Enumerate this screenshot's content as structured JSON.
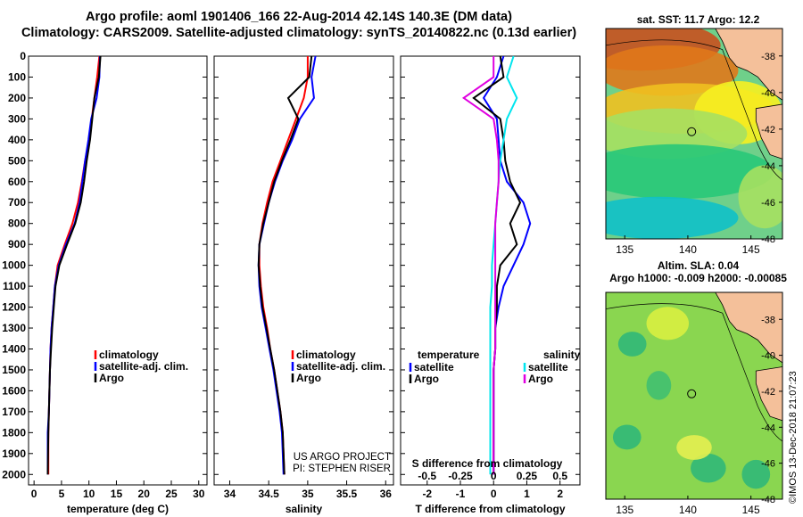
{
  "header": {
    "title_line1": "Argo profile: aoml 1901406_166 22-Aug-2014 42.14S 140.3E (DM data)",
    "title_line2": "Climatology: CARS2009. Satellite-adjusted climatology: synTS_20140822.nc (0.13d earlier)"
  },
  "panels": {
    "temperature": {
      "xlabel": "temperature (deg C)",
      "xticks": [
        "0",
        "5",
        "10",
        "15",
        "20",
        "25",
        "30"
      ],
      "legend": [
        "climatology",
        "satellite-adj. clim.",
        "Argo"
      ]
    },
    "salinity": {
      "xlabel": "salinity",
      "xticks": [
        "34",
        "34.5",
        "35",
        "35.5",
        "36"
      ],
      "legend": [
        "climatology",
        "satellite-adj. clim.",
        "Argo"
      ],
      "credit1": "US ARGO PROJECT",
      "credit2": "PI: STEPHEN RISER"
    },
    "difference": {
      "xlabel": "T difference from climatology",
      "xticks": [
        "-2",
        "-1",
        "0",
        "1",
        "2"
      ],
      "top_label": "S difference from climatology",
      "top_ticks": [
        "-0.5",
        "-0.25",
        "0",
        "0.25",
        "0.5"
      ],
      "legend_t_title": "temperature",
      "legend_t": [
        "satellite",
        "Argo"
      ],
      "legend_s_title": "salinity",
      "legend_s": [
        "satellite",
        "Argo"
      ]
    },
    "depth_ticks": [
      "0",
      "100",
      "200",
      "300",
      "400",
      "500",
      "600",
      "700",
      "800",
      "900",
      "1000",
      "1100",
      "1200",
      "1300",
      "1400",
      "1500",
      "1600",
      "1700",
      "1800",
      "1900",
      "2000"
    ]
  },
  "maps": {
    "sst_title": "sat. SST: 11.7 Argo: 12.2",
    "sla_title1": "Altim. SLA: 0.04",
    "sla_title2": "Argo h1000: -0.009 h2000: -0.00085",
    "lat_ticks": [
      "-38",
      "-40",
      "-42",
      "-44",
      "-46",
      "-48"
    ],
    "lon_ticks": [
      "135",
      "140",
      "145"
    ],
    "stamp": "©IMOS 13-Dec-2018 21:07:23"
  },
  "colors": {
    "climatology": "#ff0000",
    "satellite": "#0000ff",
    "argo": "#000000",
    "salinity_satellite": "#00e5ee",
    "salinity_argo": "#e000e0",
    "land": "#f4c09a"
  },
  "chart_data": [
    {
      "type": "line",
      "title": "",
      "xlabel": "temperature (deg C)",
      "ylabel": "",
      "xlim": [
        -1,
        31.5
      ],
      "ylim": [
        2050,
        0
      ],
      "series": [
        {
          "name": "climatology",
          "x": [
            11.9,
            11.5,
            11.0,
            10.5,
            10.0,
            9.3,
            8.7,
            8.0,
            7.0,
            5.6,
            4.3,
            3.8,
            3.5,
            3.2,
            3.0,
            2.9,
            2.8,
            2.7,
            2.6,
            2.6
          ],
          "y": [
            0,
            100,
            200,
            300,
            400,
            500,
            600,
            700,
            800,
            900,
            1000,
            1100,
            1200,
            1300,
            1400,
            1500,
            1600,
            1700,
            1800,
            2000
          ]
        },
        {
          "name": "satellite-adj. clim.",
          "x": [
            12.0,
            11.9,
            11.4,
            10.4,
            9.9,
            9.3,
            8.8,
            8.3,
            7.4,
            5.8,
            4.5,
            3.8,
            3.5,
            3.2,
            3.0,
            2.9,
            2.8,
            2.7,
            2.5,
            2.5
          ],
          "y": [
            0,
            100,
            200,
            300,
            400,
            500,
            600,
            700,
            800,
            900,
            1000,
            1100,
            1200,
            1300,
            1400,
            1500,
            1600,
            1700,
            1800,
            2000
          ]
        },
        {
          "name": "Argo",
          "x": [
            12.1,
            11.8,
            11.0,
            10.6,
            10.2,
            9.6,
            9.1,
            8.5,
            7.5,
            6.0,
            4.6,
            3.9,
            3.6,
            3.3,
            3.1,
            2.9,
            2.8,
            2.7,
            2.6,
            2.5
          ],
          "y": [
            0,
            100,
            200,
            300,
            400,
            500,
            600,
            700,
            800,
            900,
            1000,
            1100,
            1200,
            1300,
            1400,
            1500,
            1600,
            1700,
            1800,
            2000
          ]
        }
      ]
    },
    {
      "type": "line",
      "title": "",
      "xlabel": "salinity",
      "ylabel": "",
      "xlim": [
        33.8,
        36.1
      ],
      "ylim": [
        2050,
        0
      ],
      "series": [
        {
          "name": "climatology",
          "x": [
            35.0,
            35.0,
            34.95,
            34.85,
            34.75,
            34.65,
            34.55,
            34.48,
            34.42,
            34.38,
            34.38,
            34.4,
            34.43,
            34.48,
            34.52,
            34.57,
            34.61,
            34.65,
            34.68,
            34.7
          ],
          "y": [
            0,
            100,
            200,
            300,
            400,
            500,
            600,
            700,
            800,
            900,
            1000,
            1100,
            1200,
            1300,
            1400,
            1500,
            1600,
            1700,
            1800,
            2000
          ]
        },
        {
          "name": "satellite-adj. clim.",
          "x": [
            35.1,
            35.05,
            35.08,
            34.9,
            34.8,
            34.68,
            34.58,
            34.5,
            34.44,
            34.38,
            34.37,
            34.38,
            34.41,
            34.46,
            34.51,
            34.56,
            34.6,
            34.64,
            34.67,
            34.69
          ],
          "y": [
            0,
            100,
            200,
            300,
            400,
            500,
            600,
            700,
            800,
            900,
            1000,
            1100,
            1200,
            1300,
            1400,
            1500,
            1600,
            1700,
            1800,
            2000
          ]
        },
        {
          "name": "Argo",
          "x": [
            35.05,
            35.02,
            34.75,
            34.88,
            34.78,
            34.67,
            34.57,
            34.5,
            34.43,
            34.38,
            34.37,
            34.39,
            34.42,
            34.47,
            34.52,
            34.57,
            34.61,
            34.65,
            34.68,
            34.7
          ],
          "y": [
            0,
            100,
            200,
            300,
            400,
            500,
            600,
            700,
            800,
            900,
            1000,
            1100,
            1200,
            1300,
            1400,
            1500,
            1600,
            1700,
            1800,
            2000
          ]
        }
      ]
    },
    {
      "type": "line",
      "title": "",
      "xlabel": "T difference from climatology",
      "ylabel": "",
      "xlim": [
        -2.8,
        2.6
      ],
      "ylim": [
        2050,
        0
      ],
      "series": [
        {
          "name": "temperature satellite",
          "x": [
            0.3,
            0.1,
            -0.3,
            0.1,
            0.15,
            0.2,
            0.4,
            0.9,
            1.1,
            0.9,
            0.6,
            0.3,
            0.15,
            0.05,
            0.05,
            0.0,
            0.0,
            0.0,
            0.0,
            0.0
          ],
          "y": [
            0,
            100,
            200,
            300,
            400,
            500,
            600,
            700,
            800,
            900,
            1000,
            1100,
            1200,
            1300,
            1400,
            1500,
            1600,
            1700,
            1800,
            2000
          ]
        },
        {
          "name": "temperature Argo",
          "x": [
            0.2,
            0.3,
            -0.6,
            0.2,
            0.3,
            0.35,
            0.5,
            0.8,
            0.5,
            0.7,
            0.2,
            0.1,
            0.1,
            0.05,
            0.05,
            0.0,
            0.0,
            0.0,
            0.0,
            0.0
          ],
          "y": [
            0,
            100,
            200,
            300,
            400,
            500,
            600,
            700,
            800,
            900,
            1000,
            1100,
            1200,
            1300,
            1400,
            1500,
            1600,
            1700,
            1800,
            2000
          ]
        },
        {
          "name": "salinity satellite",
          "x": [
            0.6,
            0.4,
            0.7,
            0.4,
            0.3,
            0.2,
            0.15,
            0.1,
            0.05,
            0.0,
            -0.05,
            -0.05,
            -0.1,
            -0.1,
            -0.1,
            -0.1,
            -0.1,
            -0.1,
            -0.1,
            -0.1
          ],
          "y": [
            0,
            100,
            200,
            300,
            400,
            500,
            600,
            700,
            800,
            900,
            1000,
            1100,
            1200,
            1300,
            1400,
            1500,
            1600,
            1700,
            1800,
            2000
          ]
        },
        {
          "name": "salinity Argo",
          "x": [
            0.0,
            0.0,
            -0.9,
            0.0,
            0.1,
            0.15,
            0.15,
            0.1,
            0.05,
            0.05,
            0.05,
            0.05,
            0.05,
            0.05,
            0.05,
            0.0,
            0.0,
            0.0,
            0.0,
            0.0
          ],
          "y": [
            0,
            100,
            200,
            300,
            400,
            500,
            600,
            700,
            800,
            900,
            1000,
            1100,
            1200,
            1300,
            1400,
            1500,
            1600,
            1700,
            1800,
            2000
          ]
        }
      ]
    }
  ]
}
